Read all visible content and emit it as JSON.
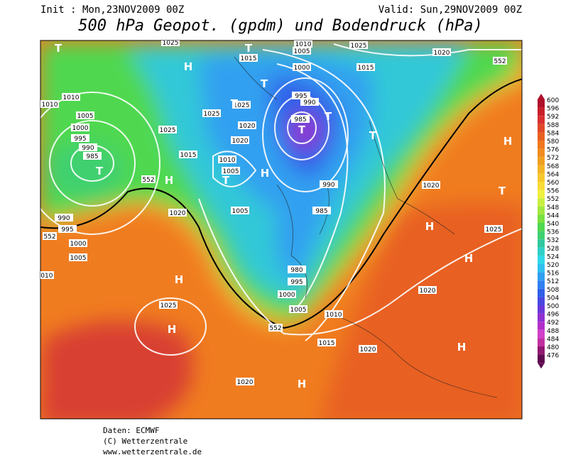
{
  "header": {
    "init": "Init : Mon,23NOV2009 00Z",
    "valid": "Valid: Sun,29NOV2009 00Z",
    "title": "500 hPa Geopot. (gpdm) und Bodendruck (hPa)"
  },
  "legend": {
    "levels": [
      600,
      596,
      592,
      588,
      584,
      580,
      576,
      572,
      568,
      564,
      560,
      556,
      552,
      548,
      544,
      540,
      536,
      532,
      528,
      524,
      520,
      516,
      512,
      508,
      504,
      500,
      496,
      492,
      488,
      484,
      480,
      476
    ],
    "colors": [
      "#b0102a",
      "#c8202a",
      "#d83030",
      "#e04828",
      "#e86020",
      "#f07820",
      "#f08c20",
      "#f0a020",
      "#f4b428",
      "#f8c830",
      "#f8dc38",
      "#f0f040",
      "#c8f040",
      "#a0e840",
      "#78e040",
      "#50d850",
      "#40d070",
      "#30c8a0",
      "#30d0c8",
      "#30d8e8",
      "#30c0f0",
      "#30a0f0",
      "#3080f0",
      "#3060e8",
      "#4848e0",
      "#6838d8",
      "#9030d0",
      "#b030c8",
      "#d040c8",
      "#c030a0",
      "#901870",
      "#600850"
    ]
  },
  "isobar_labels": [
    "1010",
    "1010",
    "1005",
    "1000",
    "995",
    "990",
    "985",
    "1025",
    "1015",
    "1025",
    "1025",
    "1020",
    "1020",
    "1010",
    "1005",
    "1005",
    "1015",
    "1010",
    "1005",
    "1000",
    "995",
    "990",
    "985",
    "1025",
    "1015",
    "1020",
    "1020",
    "990",
    "985",
    "980",
    "995",
    "1000",
    "1005",
    "1010",
    "1015",
    "1020",
    "1020",
    "1025",
    "1020",
    "990",
    "995",
    "1000",
    "1005",
    "1010",
    "1025",
    "1020",
    "1025"
  ],
  "height_labels": [
    "552",
    "552",
    "552",
    "552"
  ],
  "pressure_centers": [
    "T",
    "H",
    "T",
    "T",
    "T",
    "T",
    "T",
    "T",
    "T",
    "H",
    "T",
    "H",
    "H",
    "T",
    "H",
    "H",
    "H",
    "H",
    "H",
    "H"
  ],
  "footer": [
    "Daten: ECMWF",
    "(C) Wetterzentrale",
    "www.wetterzentrale.de"
  ]
}
